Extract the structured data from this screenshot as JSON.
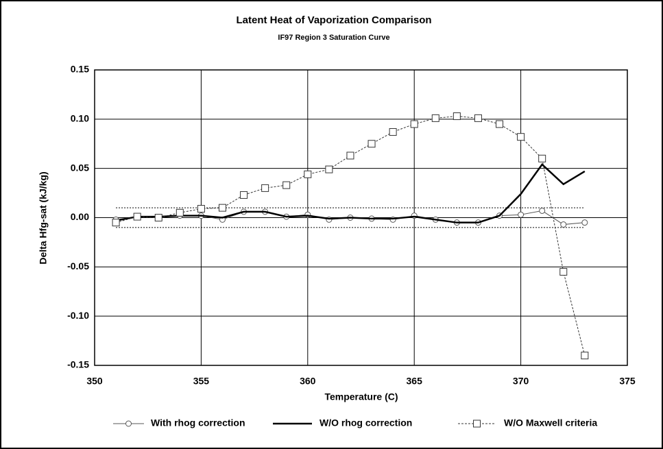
{
  "chart_data": {
    "type": "line",
    "title": "Latent Heat of Vaporization Comparison",
    "subtitle": "IF97 Region 3 Saturation Curve",
    "x_label": "Temperature  (C)",
    "y_label": "Delta Hfg-sat (kJ/kg)",
    "x": [
      351,
      352,
      353,
      354,
      355,
      356,
      357,
      358,
      359,
      360,
      361,
      362,
      363,
      364,
      365,
      366,
      367,
      368,
      369,
      370,
      371,
      372,
      373
    ],
    "series": [
      {
        "name": "With rhog correction",
        "color": "#555555",
        "marker": "circle",
        "line_style": "solid",
        "values": [
          -0.002,
          0.001,
          0.0,
          0.002,
          0.002,
          -0.002,
          0.006,
          0.006,
          0.001,
          0.003,
          -0.002,
          0.0,
          -0.001,
          -0.002,
          0.002,
          -0.002,
          -0.005,
          -0.005,
          0.002,
          0.003,
          0.007,
          -0.007,
          -0.005
        ]
      },
      {
        "name": "W/O rhog correction",
        "color": "#000000",
        "marker": "none",
        "line_style": "solid",
        "values": [
          -0.003,
          0.001,
          0.001,
          0.002,
          0.002,
          0.0,
          0.006,
          0.006,
          0.001,
          0.002,
          -0.001,
          0.0,
          -0.001,
          -0.001,
          0.001,
          -0.002,
          -0.005,
          -0.005,
          0.002,
          0.024,
          0.054,
          0.034,
          0.047
        ]
      },
      {
        "name": "W/O Maxwell criteria",
        "color": "#333333",
        "marker": "square",
        "line_style": "dashed",
        "values": [
          -0.005,
          0.001,
          0.0,
          0.005,
          0.009,
          0.01,
          0.023,
          0.03,
          0.033,
          0.044,
          0.049,
          0.063,
          0.075,
          0.087,
          0.095,
          0.101,
          0.103,
          0.101,
          0.095,
          0.082,
          0.06,
          -0.055,
          -0.14
        ]
      }
    ],
    "reference_lines": [
      0.01,
      -0.01
    ],
    "xlim": [
      350,
      375
    ],
    "xticks": [
      350,
      355,
      360,
      365,
      370,
      375
    ],
    "ylim": [
      -0.15,
      0.15
    ],
    "yticks": [
      -0.15,
      {
        "value": -0.1,
        "label": "-0.10"
      },
      -0.05,
      {
        "value": 0,
        "label": "0.00"
      },
      0.05,
      {
        "value": 0.1,
        "label": "0.10"
      },
      0.15
    ],
    "grid": true,
    "legend": "bottom"
  }
}
